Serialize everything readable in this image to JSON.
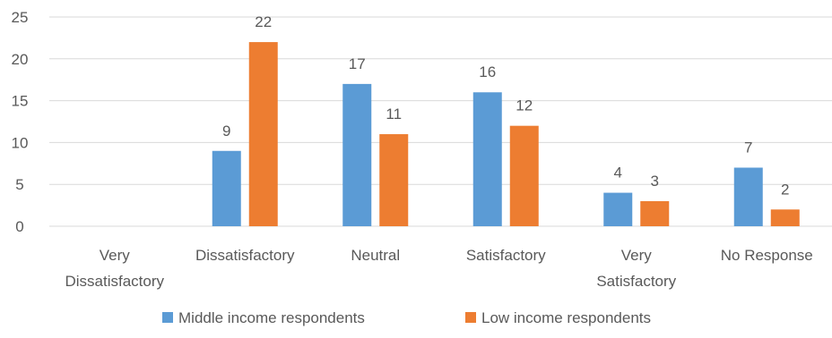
{
  "chart_data": {
    "type": "bar",
    "categories": [
      [
        "Very",
        "Dissatisfactory"
      ],
      [
        "Dissatisfactory"
      ],
      [
        "Neutral"
      ],
      [
        "Satisfactory"
      ],
      [
        "Very",
        "Satisfactory"
      ],
      [
        "No Response"
      ]
    ],
    "series": [
      {
        "name": "Middle income respondents",
        "color": "#5b9bd5",
        "values": [
          null,
          9,
          17,
          16,
          4,
          7
        ]
      },
      {
        "name": "Low income respondents",
        "color": "#ed7d31",
        "values": [
          null,
          22,
          11,
          12,
          3,
          2
        ]
      }
    ],
    "ylim": [
      0,
      25
    ],
    "yticks": [
      0,
      5,
      10,
      15,
      20,
      25
    ],
    "grid": true,
    "data_labels": true,
    "legend_position": "bottom"
  }
}
